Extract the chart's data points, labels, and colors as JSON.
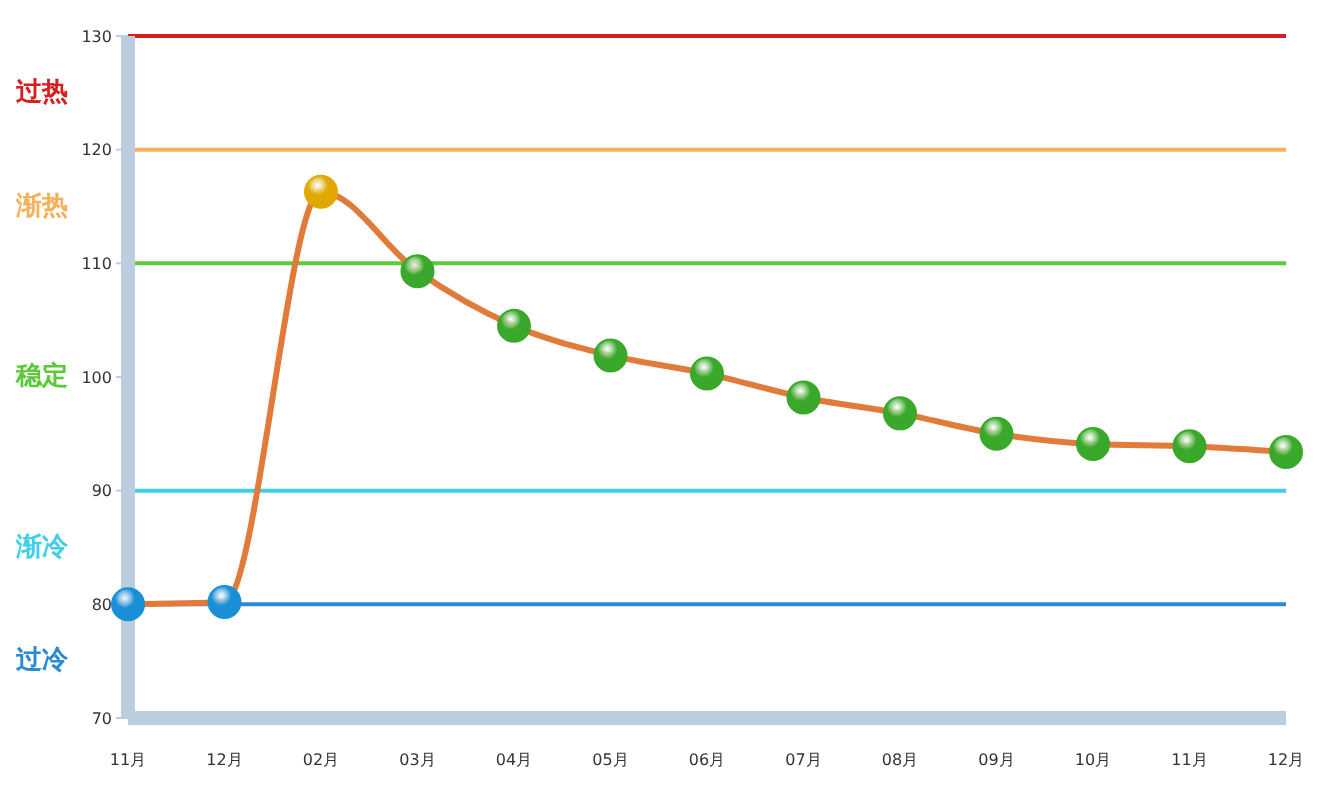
{
  "chart_data": {
    "type": "line",
    "categories": [
      "11月",
      "12月",
      "02月",
      "03月",
      "04月",
      "05月",
      "06月",
      "07月",
      "08月",
      "09月",
      "10月",
      "11月",
      "12月"
    ],
    "series": [
      {
        "color": "#e07b39",
        "values": [
          80,
          80.2,
          116.3,
          109.3,
          104.5,
          101.9,
          100.3,
          98.2,
          96.8,
          95,
          94.1,
          93.9,
          93.4
        ],
        "colors": [
          "#1a8fd6",
          "#1a8fd6",
          "#e0a800",
          "#3aa82a",
          "#3aa82a",
          "#3aa82a",
          "#3aa82a",
          "#3aa82a",
          "#3aa82a",
          "#3aa82a",
          "#3aa82a",
          "#3aa82a",
          "#3aa82a"
        ]
      }
    ],
    "ylim": [
      70,
      130
    ],
    "yticks": [
      70,
      80,
      90,
      100,
      110,
      120,
      130
    ],
    "grid": false,
    "marker": "circle",
    "ref_lines": [
      {
        "axis": "y",
        "value": 130,
        "color": "#d62020",
        "label": "过热"
      },
      {
        "axis": "y",
        "value": 120,
        "color": "#f5b15a",
        "label": "渐热"
      },
      {
        "axis": "y",
        "value": 110,
        "color": "#5cc93a",
        "label": "稳定"
      },
      {
        "axis": "y",
        "value": 90,
        "color": "#3fd0e8",
        "label": "渐冷"
      },
      {
        "axis": "y",
        "value": 80,
        "color": "#2a8ad6",
        "label": "过冷"
      }
    ]
  }
}
